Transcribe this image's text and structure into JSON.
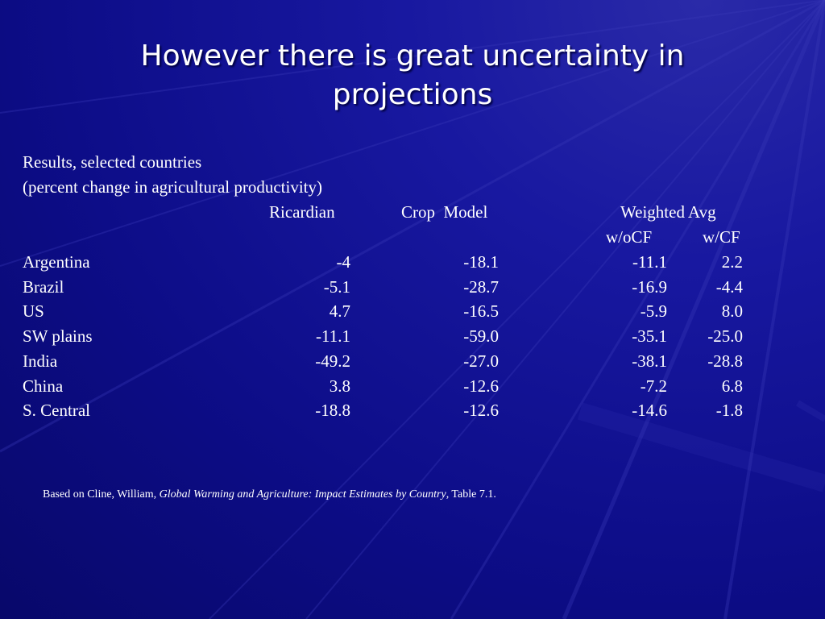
{
  "slide": {
    "title_line1": "However there is great uncertainty in",
    "title_line2": "projections",
    "subtitle1": "Results, selected countries",
    "subtitle2": "(percent change in agricultural productivity)"
  },
  "table": {
    "headers": {
      "ricardian": "Ricardian",
      "crop_model": "Crop  Model",
      "weighted_avg": "Weighted Avg",
      "wocf": "w/oCF",
      "wcf": "w/CF"
    },
    "rows": [
      {
        "country": "Argentina",
        "ricardian": "-4",
        "crop": "-18.1",
        "wocf": "-11.1",
        "wcf": "2.2"
      },
      {
        "country": "Brazil",
        "ricardian": "-5.1",
        "crop": "-28.7",
        "wocf": "-16.9",
        "wcf": "-4.4"
      },
      {
        "country": "US",
        "ricardian": "4.7",
        "crop": "-16.5",
        "wocf": "-5.9",
        "wcf": "8.0"
      },
      {
        "country": "SW plains",
        "ricardian": "-11.1",
        "crop": "-59.0",
        "wocf": "-35.1",
        "wcf": "-25.0"
      },
      {
        "country": "India",
        "ricardian": "-49.2",
        "crop": "-27.0",
        "wocf": "-38.1",
        "wcf": "-28.8"
      },
      {
        "country": "China",
        "ricardian": "3.8",
        "crop": "-12.6",
        "wocf": "-7.2",
        "wcf": "6.8"
      },
      {
        "country": "S. Central",
        "ricardian": "-18.8",
        "crop": "-12.6",
        "wocf": "-14.6",
        "wcf": "-1.8"
      }
    ]
  },
  "footnote": {
    "prefix": "Based on Cline, William, ",
    "book_title": "Global Warming and Agriculture: Impact Estimates by Country",
    "suffix": ", Table 7.1."
  },
  "colors": {
    "background": "#0d0d88",
    "text": "#ffffff"
  }
}
